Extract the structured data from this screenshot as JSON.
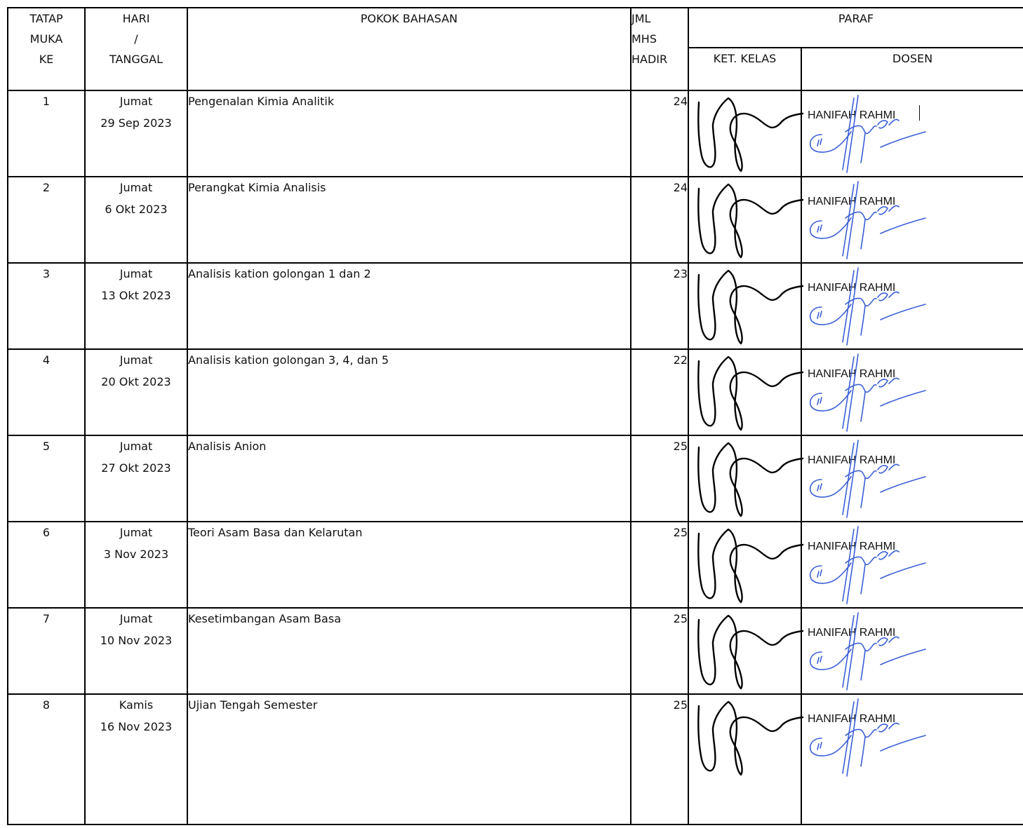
{
  "header": {
    "tatap_muka": [
      "TATAP",
      "MUKA",
      "KE"
    ],
    "hari_tanggal": [
      "HARI",
      "/",
      "TANGGAL"
    ],
    "pokok_bahasan": "POKOK BAHASAN",
    "jml_mhs_hadir": [
      "JML",
      "MHS",
      "HADIR"
    ],
    "paraf": "PARAF",
    "ket_kelas": "KET. KELAS",
    "dosen": "DOSEN"
  },
  "rows": [
    {
      "no": "1",
      "day": "Jumat",
      "date": "29 Sep 2023",
      "topic": "Pengenalan Kimia Analitik",
      "count": "24",
      "dosen": "HANIFAH RAHMI"
    },
    {
      "no": "2",
      "day": "Jumat",
      "date": "6 Okt 2023",
      "topic": "Perangkat Kimia Analisis",
      "count": "24",
      "dosen": "HANIFAH RAHMI"
    },
    {
      "no": "3",
      "day": "Jumat",
      "date": "13 Okt 2023",
      "topic": "Analisis kation golongan 1 dan 2",
      "count": "23",
      "dosen": "HANIFAH RAHMI"
    },
    {
      "no": "4",
      "day": "Jumat",
      "date": "20 Okt 2023",
      "topic": "Analisis kation golongan 3, 4, dan 5",
      "count": "22",
      "dosen": "HANIFAH RAHMI"
    },
    {
      "no": "5",
      "day": "Jumat",
      "date": "27 Okt 2023",
      "topic": "Analisis Anion",
      "count": "25",
      "dosen": "HANIFAH RAHMI"
    },
    {
      "no": "6",
      "day": "Jumat",
      "date": "3 Nov 2023",
      "topic": "Teori Asam Basa dan Kelarutan",
      "count": "25",
      "dosen": "HANIFAH RAHMI"
    },
    {
      "no": "7",
      "day": "Jumat",
      "date": "10 Nov 2023",
      "topic": "Kesetimbangan Asam Basa",
      "count": "25",
      "dosen": "HANIFAH RAHMI"
    },
    {
      "no": "8",
      "day": "Kamis",
      "date": "16 Nov 2023",
      "topic": "Ujian Tengah Semester",
      "count": "25",
      "dosen": "HANIFAH RAHMI"
    }
  ],
  "colors": {
    "ink_black": "#000000",
    "signature_blue": "#3b5fd6"
  }
}
